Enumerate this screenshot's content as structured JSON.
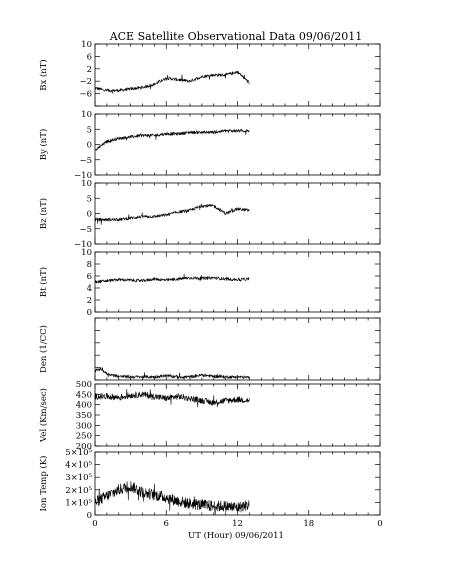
{
  "chart_data": {
    "type": "line",
    "title": "ACE Satellite Observational Data   09/06/2011",
    "xlabel": "UT (Hour)   09/06/2011",
    "x_ticks": [
      "0",
      "6",
      "12",
      "18",
      "0"
    ],
    "xlim": [
      0,
      24
    ],
    "data_end_hour": 13,
    "grid": false,
    "panels": [
      {
        "name": "Bx",
        "ylabel": "Bx (nT)",
        "ylim": [
          -10,
          10
        ],
        "yticks": [
          -10,
          -6,
          -2,
          2,
          6,
          10
        ],
        "ytick_labels": [
          "−6",
          "−2",
          "2",
          "6",
          "10"
        ],
        "ytick_label_values": [
          -6,
          -2,
          2,
          6,
          10
        ],
        "x": [
          0,
          1,
          2,
          3,
          4,
          5,
          6,
          7,
          8,
          9,
          10,
          11,
          12,
          13
        ],
        "values": [
          -4.2,
          -5.0,
          -5.0,
          -4.5,
          -4.0,
          -3.0,
          -1.0,
          -1.5,
          -2.0,
          -0.5,
          0,
          0,
          1.0,
          -2.5
        ]
      },
      {
        "name": "By",
        "ylabel": "By (nT)",
        "ylim": [
          -10,
          10
        ],
        "yticks": [
          -10,
          -5,
          0,
          5,
          10
        ],
        "ytick_labels": [
          "−10",
          "−5",
          "0",
          "5",
          "10"
        ],
        "ytick_label_values": [
          -10,
          -5,
          0,
          5,
          10
        ],
        "x": [
          0,
          1,
          2,
          3,
          4,
          5,
          6,
          7,
          8,
          9,
          10,
          11,
          12,
          13
        ],
        "values": [
          -2.0,
          1.0,
          2.0,
          2.5,
          3.0,
          3.0,
          3.5,
          3.5,
          4.0,
          4.0,
          4.0,
          4.5,
          4.5,
          4.5
        ]
      },
      {
        "name": "Bz",
        "ylabel": "Bz (nT)",
        "ylim": [
          -10,
          10
        ],
        "yticks": [
          -10,
          -5,
          0,
          5,
          10
        ],
        "ytick_labels": [
          "−10",
          "−5",
          "0",
          "5",
          "10"
        ],
        "ytick_label_values": [
          -10,
          -5,
          0,
          5,
          10
        ],
        "x": [
          0,
          1,
          2,
          3,
          4,
          5,
          6,
          7,
          8,
          9,
          10,
          11,
          12,
          13
        ],
        "values": [
          -2.0,
          -2.0,
          -2.0,
          -1.5,
          -1.0,
          -1.0,
          -0.5,
          0.5,
          1.0,
          2.5,
          2.5,
          0,
          1.5,
          1.0
        ]
      },
      {
        "name": "Bt",
        "ylabel": "Bt (nT)",
        "ylim": [
          0,
          10
        ],
        "yticks": [
          0,
          2,
          4,
          6,
          8,
          10
        ],
        "ytick_labels": [
          "0",
          "2",
          "4",
          "6",
          "8",
          "10"
        ],
        "ytick_label_values": [
          0,
          2,
          4,
          6,
          8,
          10
        ],
        "x": [
          0,
          1,
          2,
          3,
          4,
          5,
          6,
          7,
          8,
          9,
          10,
          11,
          12,
          13
        ],
        "values": [
          5.0,
          5.2,
          5.4,
          5.3,
          5.2,
          5.5,
          5.3,
          5.5,
          5.7,
          5.6,
          5.7,
          5.5,
          5.4,
          5.5
        ]
      },
      {
        "name": "Den",
        "ylabel": "Den (1/CC)",
        "ylim": [
          0,
          10
        ],
        "yticks": [
          0,
          2,
          4,
          6,
          8,
          10
        ],
        "ytick_labels": [],
        "ytick_label_values": [],
        "x": [
          0,
          0.5,
          1,
          2,
          3,
          4,
          5,
          6,
          7,
          8,
          9,
          10,
          11,
          12,
          13
        ],
        "values": [
          1.5,
          1.8,
          1.0,
          0.6,
          0.5,
          0.5,
          0.5,
          0.7,
          0.5,
          0.5,
          0.8,
          0.6,
          0.5,
          0.5,
          0.4
        ]
      },
      {
        "name": "Vel",
        "ylabel": "Vel (Km/sec)",
        "ylim": [
          200,
          500
        ],
        "yticks": [
          200,
          250,
          300,
          350,
          400,
          450,
          500
        ],
        "ytick_labels": [
          "200",
          "250",
          "300",
          "350",
          "400",
          "450",
          "500"
        ],
        "ytick_label_values": [
          200,
          250,
          300,
          350,
          400,
          450,
          500
        ],
        "x": [
          0,
          1,
          2,
          3,
          4,
          5,
          6,
          7,
          8,
          9,
          10,
          11,
          12,
          13
        ],
        "values": [
          440,
          440,
          435,
          445,
          450,
          440,
          430,
          440,
          430,
          420,
          410,
          420,
          425,
          420
        ]
      },
      {
        "name": "IonTemp",
        "ylabel": "Ion Temp (K)",
        "ylim": [
          0,
          500000
        ],
        "yticks": [
          0,
          100000,
          200000,
          300000,
          400000,
          500000
        ],
        "ytick_labels": [
          "0",
          "1×10⁵",
          "2×10⁵",
          "3×10⁵",
          "4×10⁵",
          "5×10⁵"
        ],
        "ytick_label_values": [
          0,
          100000,
          200000,
          300000,
          400000,
          500000
        ],
        "x": [
          0,
          1,
          2,
          3,
          4,
          5,
          6,
          7,
          8,
          9,
          10,
          11,
          12,
          13
        ],
        "values": [
          100000,
          150000,
          200000,
          230000,
          180000,
          160000,
          140000,
          110000,
          90000,
          80000,
          70000,
          70000,
          60000,
          80000
        ]
      }
    ]
  }
}
